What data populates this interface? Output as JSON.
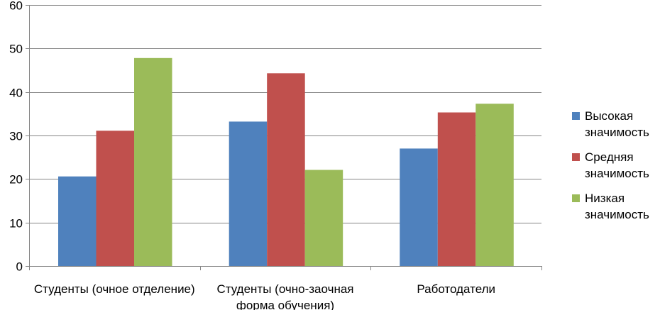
{
  "chart_data": {
    "type": "bar",
    "categories": [
      [
        "Студенты (очное отделение)"
      ],
      [
        "Студенты (очно-заочная",
        "форма обучения)"
      ],
      [
        "Работодатели"
      ]
    ],
    "series": [
      {
        "name": [
          "Высокая",
          "значимость"
        ],
        "color": "#4F81BD",
        "values": [
          20.6,
          33.2,
          27.0
        ]
      },
      {
        "name": [
          "Средняя",
          "значимость"
        ],
        "color": "#C0504D",
        "values": [
          31.1,
          44.3,
          35.3
        ]
      },
      {
        "name": [
          "Низкая",
          "значимость"
        ],
        "color": "#9BBB59",
        "values": [
          47.8,
          22.1,
          37.3
        ]
      }
    ],
    "ylim": [
      0,
      60
    ],
    "yticks": [
      0,
      10,
      20,
      30,
      40,
      50,
      60
    ],
    "grid": true,
    "legend": "right"
  }
}
